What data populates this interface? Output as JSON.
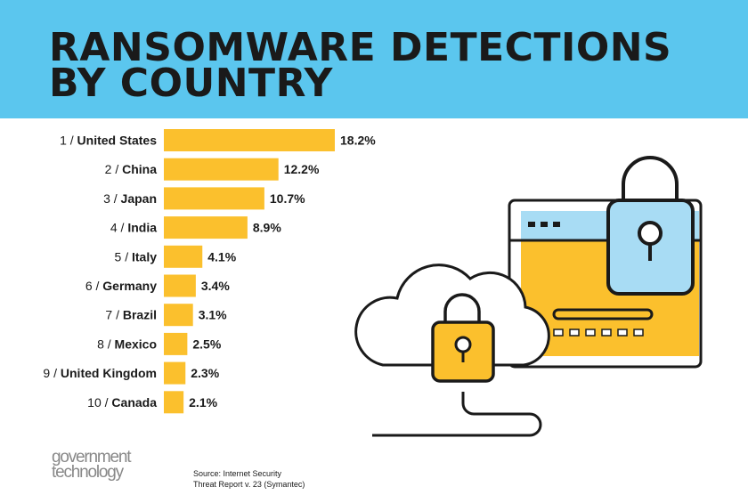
{
  "header": {
    "title_line1": "RANSOMWARE DETECTIONS",
    "title_line2": "BY COUNTRY"
  },
  "chart_data": {
    "type": "bar",
    "orientation": "horizontal",
    "categories": [
      "1 / United States",
      "2 / China",
      "3 / Japan",
      "4 / India",
      "5 / Italy",
      "6 / Germany",
      "7 / Brazil",
      "8 / Mexico",
      "9 / United Kingdom",
      "10 / Canada"
    ],
    "values": [
      18.2,
      12.2,
      10.7,
      8.9,
      4.1,
      3.4,
      3.1,
      2.5,
      2.3,
      2.1
    ],
    "value_labels": [
      "18.2%",
      "12.2%",
      "10.7%",
      "8.9%",
      "4.1%",
      "3.4%",
      "3.1%",
      "2.5%",
      "2.3%",
      "2.1%"
    ],
    "unit": "%",
    "grid": false,
    "bar_color": "#fbc02d"
  },
  "logo": {
    "line1": "government",
    "line2": "technology"
  },
  "source": {
    "line1": "Source: Internet Security",
    "line2": "Threat Report v. 23 (Symantec)"
  },
  "colors": {
    "header_bg": "#5bc6ee",
    "accent_yellow": "#fbc02d",
    "ink": "#1a1a1a",
    "light_blue": "#a8dcf4"
  },
  "illustration": {
    "icons": [
      "browser-window-icon",
      "padlock-icon",
      "cloud-icon",
      "cloud-padlock-icon",
      "network-cable-icon"
    ]
  }
}
